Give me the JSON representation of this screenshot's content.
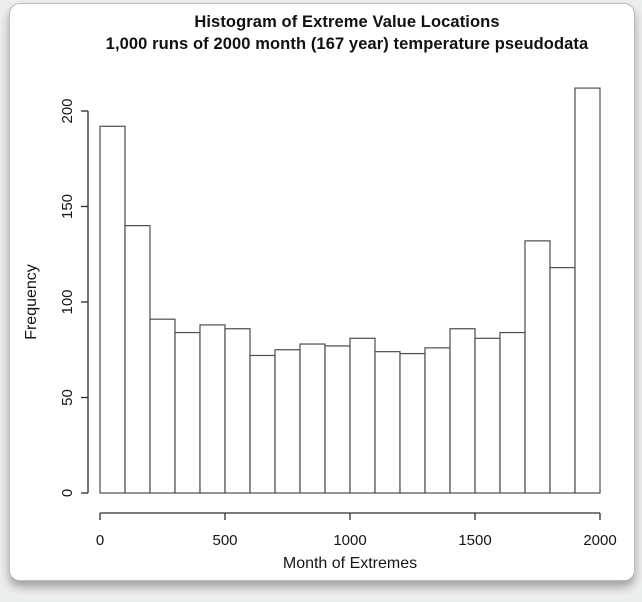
{
  "chart": {
    "title": "Histogram of Extreme Value Locations",
    "subtitle": "1,000 runs of 2000 month (167 year) temperature pseudodata"
  },
  "chart_data": {
    "type": "bar",
    "subtype": "histogram",
    "title": "Histogram of Extreme Value Locations",
    "subtitle": "1,000 runs of 2000 month (167 year) temperature pseudodata",
    "xlabel": "Month of Extremes",
    "ylabel": "Frequency",
    "bin_start": 0,
    "bin_width": 100,
    "bin_edges": [
      0,
      100,
      200,
      300,
      400,
      500,
      600,
      700,
      800,
      900,
      1000,
      1100,
      1200,
      1300,
      1400,
      1500,
      1600,
      1700,
      1800,
      1900,
      2000
    ],
    "values": [
      192,
      140,
      91,
      84,
      88,
      86,
      72,
      75,
      78,
      77,
      81,
      74,
      73,
      76,
      86,
      81,
      84,
      132,
      118,
      212
    ],
    "x_ticks": [
      0,
      500,
      1000,
      1500,
      2000
    ],
    "x_tick_labels": [
      "0",
      "500",
      "1000",
      "1500",
      "2000"
    ],
    "y_ticks": [
      0,
      50,
      100,
      150,
      200
    ],
    "y_tick_labels": [
      "0",
      "50",
      "100",
      "150",
      "200"
    ],
    "xlim": [
      0,
      2000
    ],
    "ylim": [
      0,
      212
    ],
    "grid": "off",
    "legend": "none",
    "bar_fill": "#ffffff",
    "bar_border": "#4d4d4d",
    "axis_color": "#2e2e2e",
    "text_color": "#151515"
  }
}
